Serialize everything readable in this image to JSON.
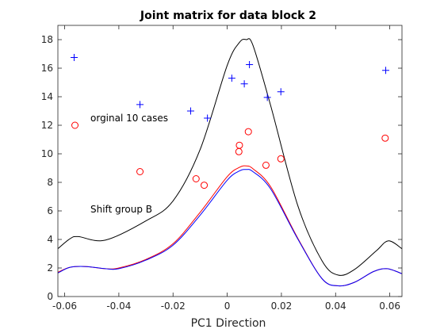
{
  "chart_data": {
    "type": "scatter",
    "title": "Joint matrix for data block 2",
    "xlabel": "PC1 Direction",
    "ylabel": "",
    "xlim": [
      -0.0625,
      0.0645
    ],
    "ylim": [
      0,
      19
    ],
    "xticks": [
      -0.06,
      -0.04,
      -0.02,
      0,
      0.02,
      0.04,
      0.06
    ],
    "xtick_labels": [
      "-0.06",
      "-0.04",
      "-0.02",
      "0",
      "0.02",
      "0.04",
      "0.06"
    ],
    "yticks": [
      0,
      2,
      4,
      6,
      8,
      10,
      12,
      14,
      16,
      18
    ],
    "ytick_labels": [
      "0",
      "2",
      "4",
      "6",
      "8",
      "10",
      "12",
      "14",
      "16",
      "18"
    ],
    "grid": false,
    "annotations": [
      {
        "text": "orginal 10 cases",
        "x": -0.0505,
        "y": 12.5
      },
      {
        "text": "Shift group B",
        "x": -0.0505,
        "y": 6.1
      }
    ],
    "series": [
      {
        "type": "scatter",
        "marker": "plus",
        "color": "#0000ff",
        "x": [
          -0.0565,
          -0.0322,
          -0.0135,
          -0.0073,
          0.0017,
          0.0063,
          0.0082,
          0.0148,
          0.0198,
          0.0585
        ],
        "y": [
          16.75,
          13.45,
          13.0,
          12.5,
          15.3,
          14.9,
          16.25,
          13.95,
          14.35,
          15.85
        ]
      },
      {
        "type": "scatter",
        "marker": "circle",
        "color": "#ff0000",
        "x": [
          -0.0562,
          -0.0322,
          -0.0115,
          -0.0085,
          0.0043,
          0.0045,
          0.0078,
          0.0143,
          0.0198,
          0.0583
        ],
        "y": [
          12.0,
          8.75,
          8.25,
          7.8,
          10.15,
          10.6,
          11.55,
          9.2,
          9.65,
          11.1
        ]
      },
      {
        "type": "line",
        "color": "#000000",
        "x": [
          -0.0625,
          -0.058,
          -0.055,
          -0.045,
          -0.03,
          -0.02,
          -0.01,
          0,
          0.0045,
          0.007,
          0.0095,
          0.016,
          0.026,
          0.035,
          0.041,
          0.047,
          0.055,
          0.0595,
          0.0645
        ],
        "y": [
          3.35,
          4.05,
          4.2,
          3.95,
          5.3,
          6.7,
          10.3,
          16.2,
          17.8,
          18.0,
          17.6,
          13.4,
          6.4,
          2.5,
          1.5,
          1.9,
          3.2,
          3.9,
          3.35
        ]
      },
      {
        "type": "line",
        "color": "#ff0000",
        "x": [
          -0.0625,
          -0.058,
          -0.052,
          -0.045,
          -0.04,
          -0.03,
          -0.02,
          -0.01,
          0,
          0.0045,
          0.007,
          0.0095,
          0.016,
          0.026,
          0.035,
          0.041,
          0.047,
          0.054,
          0.059,
          0.0645
        ],
        "y": [
          1.7,
          2.05,
          2.1,
          1.95,
          2.0,
          2.6,
          3.7,
          5.9,
          8.4,
          9.05,
          9.15,
          8.95,
          7.7,
          4.1,
          1.25,
          0.75,
          1.0,
          1.75,
          1.95,
          1.6
        ]
      },
      {
        "type": "line",
        "color": "#0000ff",
        "x": [
          -0.0625,
          -0.058,
          -0.052,
          -0.045,
          -0.04,
          -0.03,
          -0.02,
          -0.01,
          0,
          0.0045,
          0.007,
          0.0095,
          0.016,
          0.026,
          0.035,
          0.041,
          0.047,
          0.054,
          0.059,
          0.0645
        ],
        "y": [
          1.65,
          2.05,
          2.1,
          1.95,
          1.95,
          2.55,
          3.6,
          5.7,
          8.15,
          8.8,
          8.9,
          8.75,
          7.55,
          4.05,
          1.25,
          0.75,
          1.0,
          1.75,
          1.95,
          1.6
        ]
      }
    ]
  }
}
